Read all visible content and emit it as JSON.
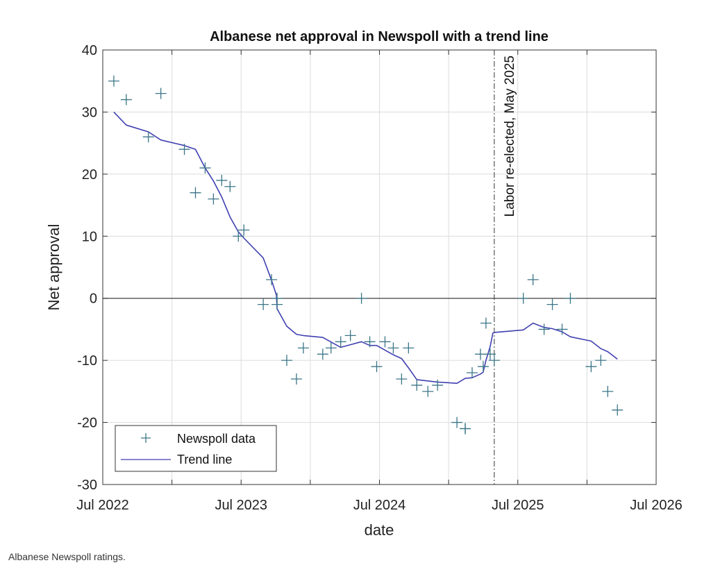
{
  "chart_data": {
    "type": "scatter",
    "title": "Albanese net approval in Newspoll with a trend line",
    "xlabel": "date",
    "ylabel": "Net approval",
    "xlim": [
      2022.5,
      2026.5
    ],
    "ylim": [
      -30,
      40
    ],
    "x_unit": "decimal year",
    "x_ticks": [
      {
        "value": 2022.5,
        "label": "Jul 2022"
      },
      {
        "value": 2023.0,
        "label": ""
      },
      {
        "value": 2023.5,
        "label": "Jul 2023"
      },
      {
        "value": 2024.0,
        "label": ""
      },
      {
        "value": 2024.5,
        "label": "Jul 2024"
      },
      {
        "value": 2025.0,
        "label": ""
      },
      {
        "value": 2025.5,
        "label": "Jul 2025"
      },
      {
        "value": 2026.0,
        "label": ""
      },
      {
        "value": 2026.5,
        "label": "Jul 2026"
      }
    ],
    "y_ticks": [
      -30,
      -20,
      -10,
      0,
      10,
      20,
      30,
      40
    ],
    "grid": true,
    "legend_position": "bottom-left",
    "colors": {
      "points": "#3b7588",
      "trend": "#3f3fb0",
      "zero_line": "#404040",
      "grid": "#dcdcdc"
    },
    "series": [
      {
        "name": "Newspoll data",
        "style": "plus-marker",
        "points": [
          [
            2022.58,
            35
          ],
          [
            2022.67,
            32
          ],
          [
            2022.83,
            26
          ],
          [
            2022.92,
            33
          ],
          [
            2023.09,
            24
          ],
          [
            2023.17,
            17
          ],
          [
            2023.24,
            21
          ],
          [
            2023.3,
            16
          ],
          [
            2023.36,
            19
          ],
          [
            2023.42,
            18
          ],
          [
            2023.48,
            10
          ],
          [
            2023.52,
            11
          ],
          [
            2023.66,
            -1
          ],
          [
            2023.72,
            3
          ],
          [
            2023.76,
            -1
          ],
          [
            2023.76,
            0
          ],
          [
            2023.83,
            -10
          ],
          [
            2023.9,
            -13
          ],
          [
            2023.95,
            -8
          ],
          [
            2024.09,
            -9
          ],
          [
            2024.15,
            -8
          ],
          [
            2024.22,
            -7
          ],
          [
            2024.29,
            -6
          ],
          [
            2024.37,
            0
          ],
          [
            2024.43,
            -7
          ],
          [
            2024.48,
            -11
          ],
          [
            2024.54,
            -7
          ],
          [
            2024.6,
            -8
          ],
          [
            2024.66,
            -13
          ],
          [
            2024.71,
            -8
          ],
          [
            2024.77,
            -14
          ],
          [
            2024.85,
            -15
          ],
          [
            2024.92,
            -14
          ],
          [
            2025.06,
            -20
          ],
          [
            2025.12,
            -21
          ],
          [
            2025.12,
            -21
          ],
          [
            2025.17,
            -12
          ],
          [
            2025.23,
            -9
          ],
          [
            2025.25,
            -11
          ],
          [
            2025.27,
            -4
          ],
          [
            2025.3,
            -9
          ],
          [
            2025.33,
            -10
          ],
          [
            2025.54,
            0
          ],
          [
            2025.61,
            3
          ],
          [
            2025.69,
            -5
          ],
          [
            2025.75,
            -1
          ],
          [
            2025.82,
            -5
          ],
          [
            2025.88,
            0
          ],
          [
            2026.03,
            -11
          ],
          [
            2026.1,
            -10
          ],
          [
            2026.15,
            -15
          ],
          [
            2026.22,
            -18
          ]
        ]
      },
      {
        "name": "Trend line",
        "style": "line",
        "points": [
          [
            2022.58,
            30.0
          ],
          [
            2022.67,
            27.9
          ],
          [
            2022.83,
            26.8
          ],
          [
            2022.92,
            25.5
          ],
          [
            2023.09,
            24.6
          ],
          [
            2023.17,
            24.0
          ],
          [
            2023.24,
            21.0
          ],
          [
            2023.3,
            18.9
          ],
          [
            2023.36,
            16.3
          ],
          [
            2023.42,
            13.1
          ],
          [
            2023.48,
            10.7
          ],
          [
            2023.52,
            9.7
          ],
          [
            2023.66,
            6.5
          ],
          [
            2023.72,
            2.9
          ],
          [
            2023.755,
            0.5
          ],
          [
            2023.76,
            -1.7
          ],
          [
            2023.83,
            -4.5
          ],
          [
            2023.9,
            -5.8
          ],
          [
            2023.95,
            -6.0
          ],
          [
            2024.09,
            -6.3
          ],
          [
            2024.22,
            -7.9
          ],
          [
            2024.37,
            -7.0
          ],
          [
            2024.43,
            -7.6
          ],
          [
            2024.48,
            -7.6
          ],
          [
            2024.6,
            -9.1
          ],
          [
            2024.66,
            -9.7
          ],
          [
            2024.71,
            -11.2
          ],
          [
            2024.77,
            -13.1
          ],
          [
            2024.92,
            -13.5
          ],
          [
            2025.06,
            -13.7
          ],
          [
            2025.12,
            -12.9
          ],
          [
            2025.17,
            -12.8
          ],
          [
            2025.23,
            -12.2
          ],
          [
            2025.25,
            -11.9
          ],
          [
            2025.27,
            -10.0
          ],
          [
            2025.3,
            -7.8
          ],
          [
            2025.32,
            -5.6
          ],
          [
            2025.33,
            -5.5
          ],
          [
            2025.54,
            -5.1
          ],
          [
            2025.61,
            -4.0
          ],
          [
            2025.69,
            -4.7
          ],
          [
            2025.75,
            -4.9
          ],
          [
            2025.82,
            -5.4
          ],
          [
            2025.88,
            -6.2
          ],
          [
            2026.03,
            -6.9
          ],
          [
            2026.1,
            -8.1
          ],
          [
            2026.15,
            -8.6
          ],
          [
            2026.22,
            -9.8
          ]
        ]
      }
    ],
    "annotations": [
      {
        "type": "vertical-line",
        "x": 2025.33,
        "style": "dash-dot",
        "label": "Labor re-elected, May 2025"
      }
    ]
  },
  "legend": {
    "items": [
      {
        "label": "Newspoll data"
      },
      {
        "label": "Trend line"
      }
    ]
  },
  "caption": "Albanese Newspoll ratings."
}
